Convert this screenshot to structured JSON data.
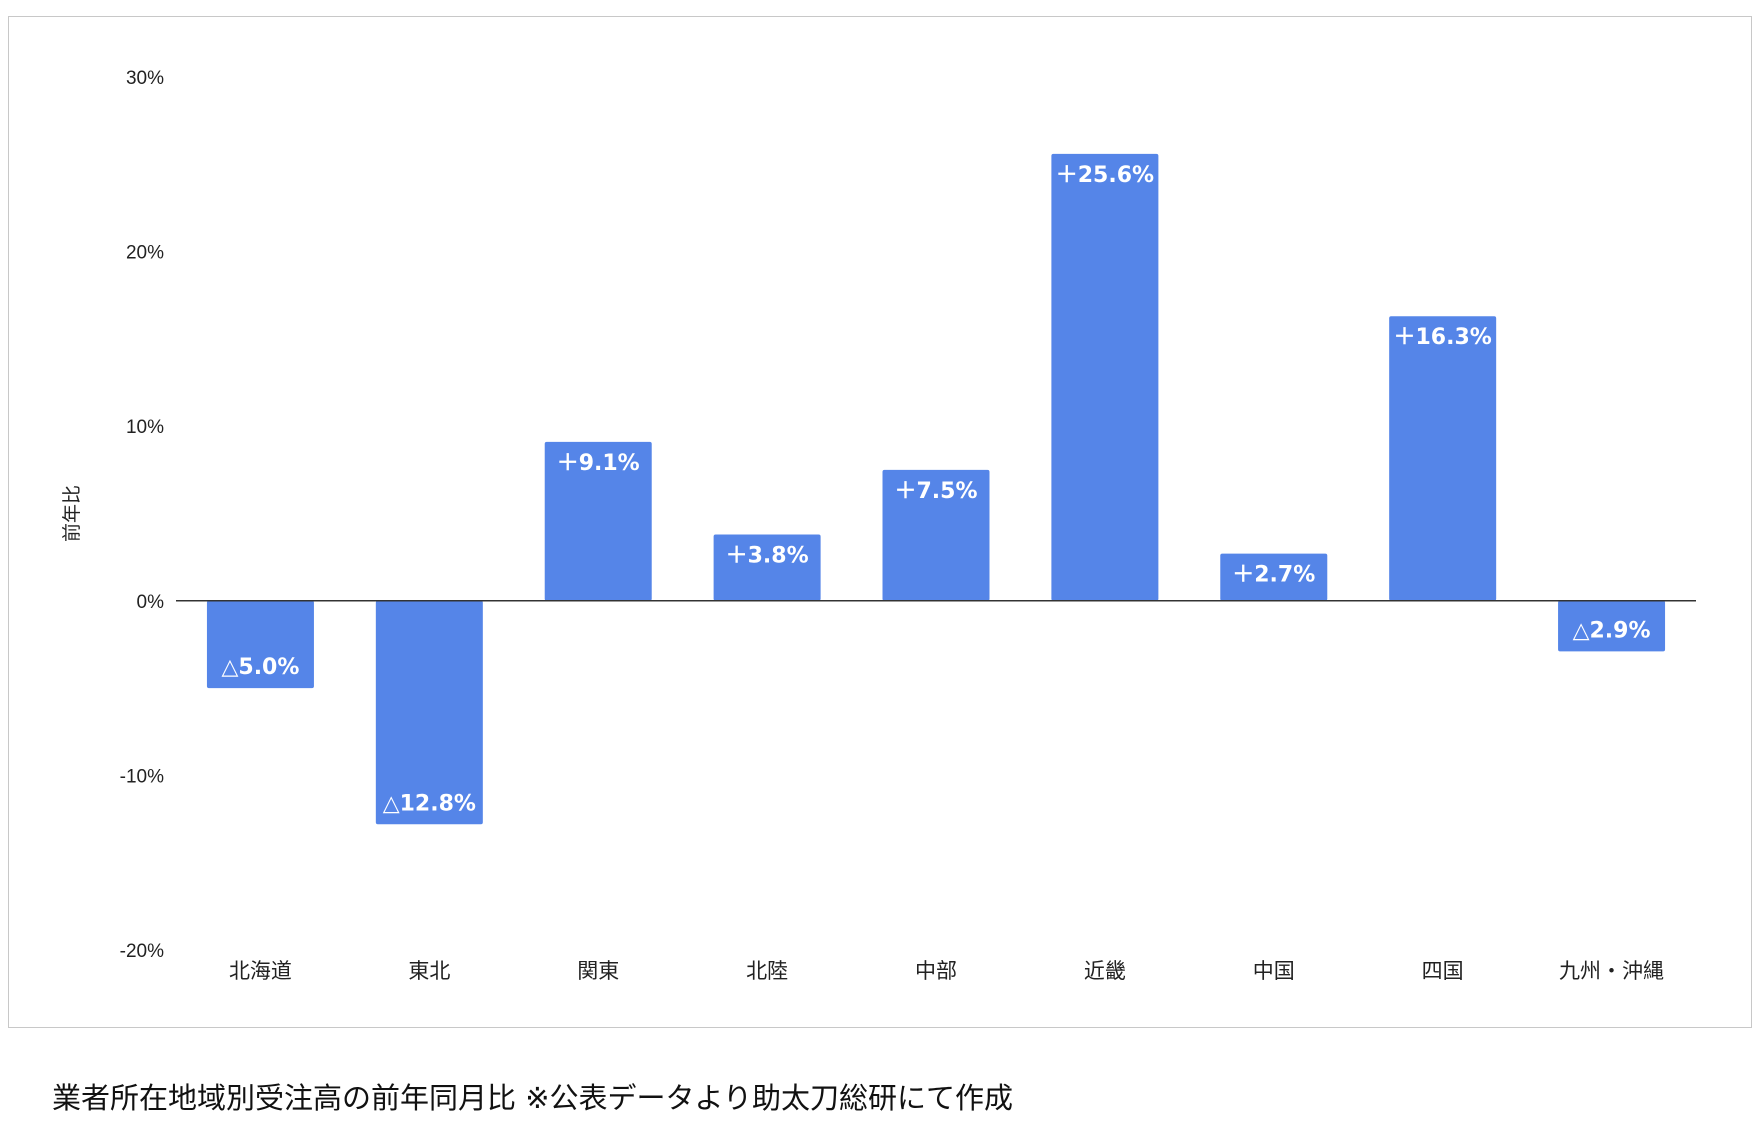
{
  "chart_data": {
    "type": "bar",
    "title": "",
    "xlabel": "",
    "ylabel": "前年比",
    "ylim": [
      -20,
      30
    ],
    "yticks": [
      30,
      20,
      10,
      0,
      -10,
      -20
    ],
    "ytick_labels": [
      "30%",
      "20%",
      "10%",
      "0%",
      "-10%",
      "-20%"
    ],
    "categories": [
      "北海道",
      "東北",
      "関東",
      "北陸",
      "中部",
      "近畿",
      "中国",
      "四国",
      "九州・沖縄"
    ],
    "values": [
      -5.0,
      -12.8,
      9.1,
      3.8,
      7.5,
      25.6,
      2.7,
      16.3,
      -2.9
    ],
    "data_labels": [
      "△5.0%",
      "△12.8%",
      "＋9.1%",
      "＋3.8%",
      "＋7.5%",
      "＋25.6%",
      "＋2.7%",
      "＋16.3%",
      "△2.9%"
    ],
    "bar_color": "#5585e8",
    "grid": false,
    "legend": "none"
  },
  "caption": "業者所在地域別受注高の前年同月比 ※公表データより助太刀総研にて作成"
}
